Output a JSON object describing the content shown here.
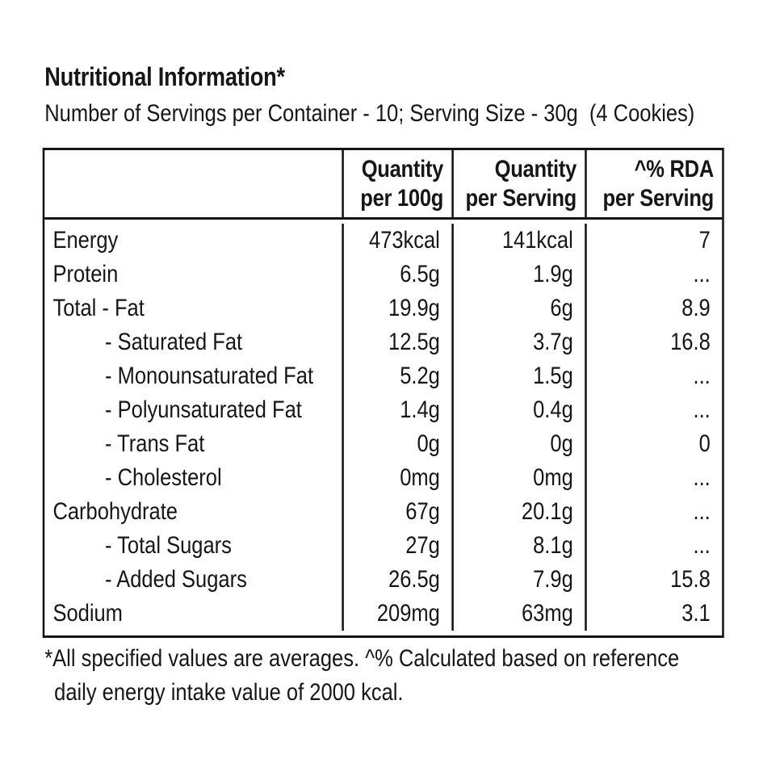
{
  "title": "Nutritional Information*",
  "subtitle": "Number of Servings per Container - 10; Serving Size - 30g  (4 Cookies)",
  "colors": {
    "background": "#ffffff",
    "text": "#161616",
    "table_border": "#141414"
  },
  "table": {
    "header": {
      "nutrient_col": "",
      "col_quantity_100g": {
        "line1": "Quantity",
        "line2": "per 100g"
      },
      "col_quantity_serving": {
        "line1": "Quantity",
        "line2": "per Serving"
      },
      "col_rda": {
        "line1": "^% RDA",
        "line2": "per Serving"
      }
    },
    "rows": [
      {
        "label": "Energy",
        "indent": false,
        "per_100g": "473kcal",
        "per_serving": "141kcal",
        "rda": "7"
      },
      {
        "label": "Protein",
        "indent": false,
        "per_100g": "6.5g",
        "per_serving": "1.9g",
        "rda": "..."
      },
      {
        "label": "Total - Fat",
        "indent": false,
        "per_100g": "19.9g",
        "per_serving": "6g",
        "rda": "8.9"
      },
      {
        "label": "- Saturated Fat",
        "indent": true,
        "per_100g": "12.5g",
        "per_serving": "3.7g",
        "rda": "16.8"
      },
      {
        "label": "- Monounsaturated Fat",
        "indent": true,
        "per_100g": "5.2g",
        "per_serving": "1.5g",
        "rda": "..."
      },
      {
        "label": "- Polyunsaturated Fat",
        "indent": true,
        "per_100g": "1.4g",
        "per_serving": "0.4g",
        "rda": "..."
      },
      {
        "label": "- Trans Fat",
        "indent": true,
        "per_100g": "0g",
        "per_serving": "0g",
        "rda": "0"
      },
      {
        "label": "- Cholesterol",
        "indent": true,
        "per_100g": "0mg",
        "per_serving": "0mg",
        "rda": "..."
      },
      {
        "label": "Carbohydrate",
        "indent": false,
        "per_100g": "67g",
        "per_serving": "20.1g",
        "rda": "..."
      },
      {
        "label": "- Total Sugars",
        "indent": true,
        "per_100g": "27g",
        "per_serving": "8.1g",
        "rda": "..."
      },
      {
        "label": "- Added Sugars",
        "indent": true,
        "per_100g": "26.5g",
        "per_serving": "7.9g",
        "rda": "15.8"
      },
      {
        "label": "Sodium",
        "indent": false,
        "per_100g": "209mg",
        "per_serving": "63mg",
        "rda": "3.1"
      }
    ]
  },
  "footnote": {
    "line1": "*All specified values are averages. ^% Calculated based on reference",
    "line2": "daily energy intake value of 2000 kcal."
  }
}
